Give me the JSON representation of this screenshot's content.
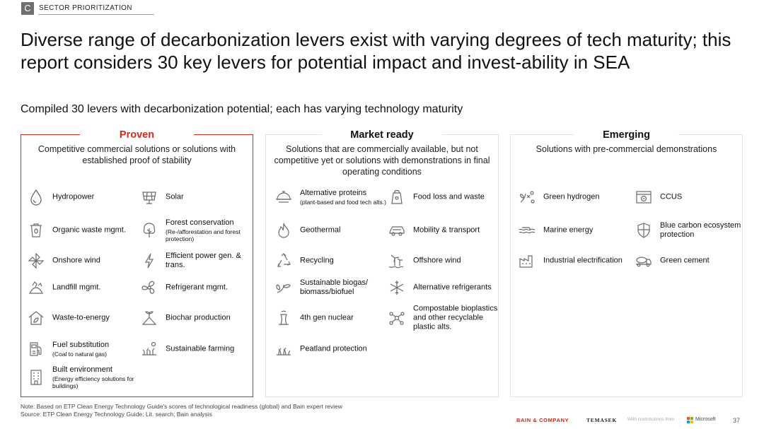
{
  "section": {
    "letter": "C",
    "label": "SECTOR PRIORITIZATION"
  },
  "title": "Diverse range of decarbonization levers exist with varying degrees of tech maturity; this report considers 30 key levers for potential impact and invest-ability in SEA",
  "subtitle": "Compiled 30 levers with decarbonization potential; each has varying technology maturity",
  "colors": {
    "accent": "#d12a1f",
    "icon": "#6a6a6a",
    "panel_border": "#e3e3e3"
  },
  "columns": {
    "proven": {
      "heading": "Proven",
      "description": "Competitive commercial solutions or solutions with established proof of stability",
      "levers": [
        {
          "label": "Hydropower",
          "sub": "",
          "icon": "droplet-icon"
        },
        {
          "label": "Solar",
          "sub": "",
          "icon": "solar-panel-icon"
        },
        {
          "label": "Organic waste mgmt.",
          "sub": "",
          "icon": "waste-bin-icon"
        },
        {
          "label": "Forest conservation",
          "sub": "(Re-/afforestation and forest protection)",
          "icon": "tree-icon"
        },
        {
          "label": "Onshore wind",
          "sub": "",
          "icon": "pinwheel-icon"
        },
        {
          "label": "Efficient power gen. & trans.",
          "sub": "",
          "icon": "lightning-icon"
        },
        {
          "label": "Landfill mgmt.",
          "sub": "",
          "icon": "landfill-icon"
        },
        {
          "label": "Refrigerant mgmt.",
          "sub": "",
          "icon": "fan-icon"
        },
        {
          "label": "Waste-to-energy",
          "sub": "",
          "icon": "house-leaf-icon"
        },
        {
          "label": "Biochar production",
          "sub": "",
          "icon": "sprout-icon"
        },
        {
          "label": "Fuel substitution",
          "sub": "(Coal to natural gas)",
          "icon": "fuel-pump-icon"
        },
        {
          "label": "Sustainable farming",
          "sub": "",
          "icon": "farming-icon"
        },
        {
          "label": "Built environment",
          "sub": "(Energy efficiency solutions for buildings)",
          "icon": "building-icon"
        }
      ]
    },
    "market": {
      "heading": "Market ready",
      "description": "Solutions that are commercially available, but not competitive yet or solutions with demonstrations in final operating conditions",
      "levers": [
        {
          "label": "Alternative proteins",
          "sub": "(plant-based and food tech alts.)",
          "icon": "food-cloche-icon"
        },
        {
          "label": "Food loss and waste",
          "sub": "",
          "icon": "food-bag-icon"
        },
        {
          "label": "Geothermal",
          "sub": "",
          "icon": "flame-icon"
        },
        {
          "label": "Mobility & transport",
          "sub": "",
          "icon": "vehicle-icon"
        },
        {
          "label": "Recycling",
          "sub": "",
          "icon": "recycle-icon"
        },
        {
          "label": "Offshore wind",
          "sub": "",
          "icon": "offshore-turbine-icon"
        },
        {
          "label": "Sustainable biogas/ biomass/biofuel",
          "sub": "",
          "icon": "leaves-icon"
        },
        {
          "label": "Alternative refrigerants",
          "sub": "",
          "icon": "snowflake-icon"
        },
        {
          "label": "4th gen nuclear",
          "sub": "",
          "icon": "cooling-tower-icon"
        },
        {
          "label": "Compostable bioplastics and other recyclable plastic alts.",
          "sub": "",
          "icon": "molecule-icon"
        },
        {
          "label": "Peatland protection",
          "sub": "",
          "icon": "grass-icon"
        }
      ]
    },
    "emerging": {
      "heading": "Emerging",
      "description": "Solutions with pre-commercial demonstrations",
      "levers": [
        {
          "label": "Green hydrogen",
          "sub": "",
          "icon": "hydrogen-icon"
        },
        {
          "label": "CCUS",
          "sub": "",
          "icon": "carbon-capture-icon"
        },
        {
          "label": "Marine energy",
          "sub": "",
          "icon": "wave-icon"
        },
        {
          "label": "Blue carbon ecosystem protection",
          "sub": "",
          "icon": "shield-icon"
        },
        {
          "label": "Industrial electrification",
          "sub": "",
          "icon": "factory-icon"
        },
        {
          "label": "Green cement",
          "sub": "",
          "icon": "cement-truck-icon"
        }
      ]
    }
  },
  "footnote": {
    "note": "Note: Based on ETP Clean Energy Technology Guide's scores of technological readiness (global) and Bain expert review",
    "source": "Source: ETP Clean Energy Technology Guide; Lit. search; Bain analysis"
  },
  "footer": {
    "bain": "BAIN & COMPANY",
    "temasek": "TEMASEK",
    "contrib": "With contributions from",
    "microsoft": "Microsoft",
    "page": "37"
  }
}
